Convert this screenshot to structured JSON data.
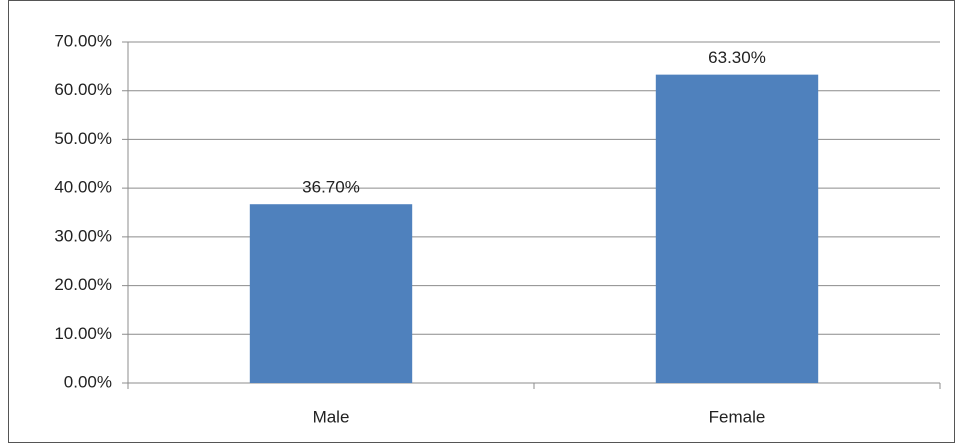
{
  "chart_data": {
    "type": "bar",
    "categories": [
      "Male",
      "Female"
    ],
    "values": [
      36.7,
      63.3
    ],
    "value_labels": [
      "36.70%",
      "63.30%"
    ],
    "color": "#4f81bd",
    "ylim": [
      0,
      70
    ],
    "yticks": [
      {
        "value": 0,
        "label": "0.00%"
      },
      {
        "value": 10,
        "label": "10.00%"
      },
      {
        "value": 20,
        "label": "20.00%"
      },
      {
        "value": 30,
        "label": "30.00%"
      },
      {
        "value": 40,
        "label": "40.00%"
      },
      {
        "value": 50,
        "label": "50.00%"
      },
      {
        "value": 60,
        "label": "60.00%"
      },
      {
        "value": 70,
        "label": "70.00%"
      }
    ],
    "grid": true
  }
}
